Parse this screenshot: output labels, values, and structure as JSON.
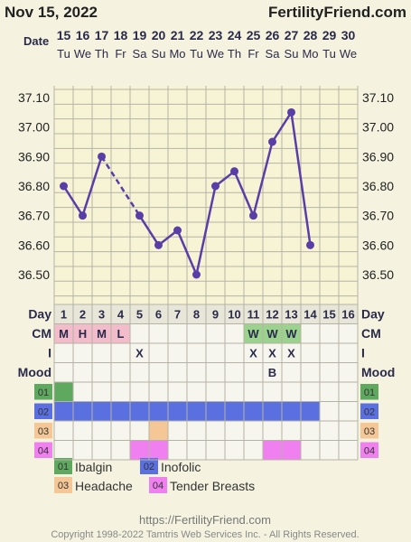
{
  "header": {
    "date": "Nov 15, 2022",
    "site": "FertilityFriend.com"
  },
  "row_labels": {
    "date": "Date",
    "day": "Day",
    "cm": "CM",
    "i": "I",
    "mood": "Mood"
  },
  "chart_data": {
    "type": "line",
    "dates": [
      "15",
      "16",
      "17",
      "18",
      "19",
      "20",
      "21",
      "22",
      "23",
      "24",
      "25",
      "26",
      "27",
      "28",
      "29",
      "30"
    ],
    "weekdays": [
      "Tu",
      "We",
      "Th",
      "Fr",
      "Sa",
      "Su",
      "Mo",
      "Tu",
      "We",
      "Th",
      "Fr",
      "Sa",
      "Su",
      "Mo",
      "Tu",
      "We"
    ],
    "cycle_days": [
      "1",
      "2",
      "3",
      "4",
      "5",
      "6",
      "7",
      "8",
      "9",
      "10",
      "11",
      "12",
      "13",
      "14",
      "15",
      "16"
    ],
    "temperature_ticks": [
      "37.10",
      "37.00",
      "36.90",
      "36.80",
      "36.70",
      "36.60",
      "36.50"
    ],
    "ylim": [
      36.44,
      37.14
    ],
    "temperatures": [
      36.8,
      36.7,
      36.9,
      null,
      36.7,
      36.6,
      36.65,
      36.5,
      36.8,
      36.85,
      36.7,
      36.95,
      37.05,
      36.6,
      null,
      null
    ],
    "dashed_bridges": [
      [
        3,
        5
      ]
    ],
    "line_color": "#5a3ea8",
    "cm": [
      "M",
      "H",
      "M",
      "L",
      "",
      "",
      "",
      "",
      "",
      "",
      "W",
      "W",
      "W",
      "",
      "",
      ""
    ],
    "intercourse": [
      "",
      "",
      "",
      "",
      "X",
      "",
      "",
      "",
      "",
      "",
      "X",
      "X",
      "X",
      "",
      "",
      ""
    ],
    "mood": [
      "",
      "",
      "",
      "",
      "",
      "",
      "",
      "",
      "",
      "",
      "",
      "B",
      "",
      "",
      "",
      ""
    ],
    "medications": [
      {
        "code": "01",
        "name": "Ibalgin",
        "color": "#5fa85f",
        "days": [
          1
        ]
      },
      {
        "code": "02",
        "name": "Inofolic",
        "color": "#5a6fe0",
        "days": [
          1,
          2,
          3,
          4,
          5,
          6,
          7,
          8,
          9,
          10,
          11,
          12,
          13,
          14
        ]
      },
      {
        "code": "03",
        "name": "Headache",
        "color": "#f5c796",
        "days": [
          6
        ]
      },
      {
        "code": "04",
        "name": "Tender Breasts",
        "color": "#f07ff0",
        "days": [
          5,
          6,
          12,
          13
        ]
      }
    ]
  },
  "footer": {
    "url": "https://FertilityFriend.com",
    "copyright": "Copyright 1998-2022 Tamtris Web Services Inc. - All Rights Reserved."
  }
}
